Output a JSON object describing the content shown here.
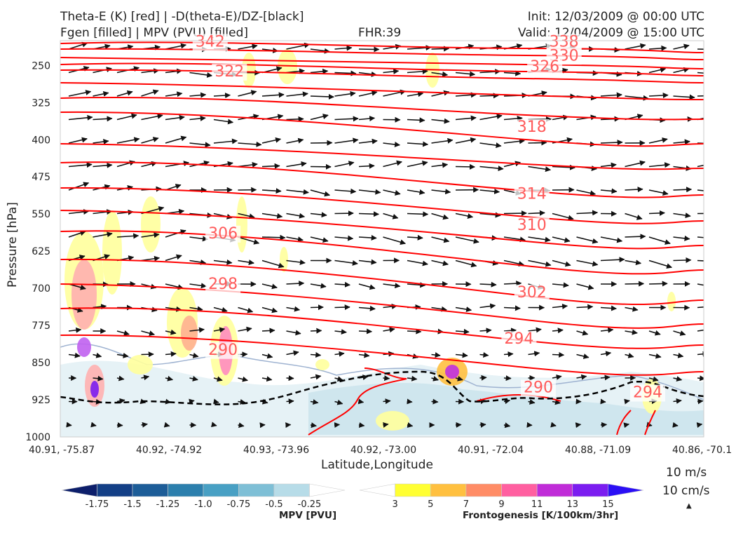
{
  "header": {
    "title_left_1": "Theta-E (K) [red] | -D(theta-E)/DZ-[black]",
    "title_left_2": "Fgen [filled] | MPV (PVU) [filled]",
    "title_center": "FHR:39",
    "title_right_1": "Init: 12/03/2009 @ 00:00 UTC",
    "title_right_2": "Valid: 12/04/2009 @ 15:00 UTC"
  },
  "chart_data": {
    "type": "cross-section",
    "xlabel": "Latitude,Longitude",
    "ylabel": "Pressure [hPa]",
    "x_ticks": [
      "40.91, -75.87",
      "40.92, -74.92",
      "40.93, -73.96",
      "40.92, -73.00",
      "40.91, -72.04",
      "40.88, -71.09",
      "40.86, -70.1"
    ],
    "y_ticks": [
      "250",
      "325",
      "400",
      "475",
      "550",
      "625",
      "700",
      "775",
      "850",
      "925",
      "1000"
    ],
    "y_values": [
      250,
      325,
      400,
      475,
      550,
      625,
      700,
      775,
      850,
      925,
      1000
    ],
    "ylim": [
      1000,
      200
    ],
    "theta_e_contours": [
      {
        "label": "342",
        "x": 0.21,
        "p": 212
      },
      {
        "label": "338",
        "x": 0.76,
        "p": 212
      },
      {
        "label": "330",
        "x": 0.76,
        "p": 240
      },
      {
        "label": "326",
        "x": 0.73,
        "p": 262
      },
      {
        "label": "322",
        "x": 0.24,
        "p": 272
      },
      {
        "label": "318",
        "x": 0.71,
        "p": 384
      },
      {
        "label": "314",
        "x": 0.71,
        "p": 519
      },
      {
        "label": "310",
        "x": 0.71,
        "p": 582
      },
      {
        "label": "306",
        "x": 0.23,
        "p": 599
      },
      {
        "label": "302",
        "x": 0.71,
        "p": 718
      },
      {
        "label": "298",
        "x": 0.23,
        "p": 701
      },
      {
        "label": "294",
        "x": 0.69,
        "p": 812
      },
      {
        "label": "290",
        "x": 0.23,
        "p": 834
      },
      {
        "label": "290",
        "x": 0.72,
        "p": 910
      },
      {
        "label": "294",
        "x": 0.89,
        "p": 920
      }
    ],
    "colorbars": [
      {
        "name": "MPV [PVU]",
        "ticks": [
          "-1.75",
          "-1.5",
          "-1.25",
          "-1.0",
          "-0.75",
          "-0.5",
          "-0.25"
        ],
        "colors": [
          "#0d1f6b",
          "#133f86",
          "#1d5d98",
          "#2c7fad",
          "#48a0c4",
          "#7ebfd6",
          "#b7dce8",
          "#ffffff"
        ]
      },
      {
        "name": "Frontogenesis [K/100km/3hr]",
        "ticks": [
          "3",
          "5",
          "7",
          "9",
          "11",
          "13",
          "15"
        ],
        "colors": [
          "#ffffff",
          "#ffff33",
          "#ffc040",
          "#ff8c66",
          "#ff5fa0",
          "#c02cd8",
          "#7b1df0",
          "#2b0ff5"
        ]
      }
    ],
    "vector_reference": [
      "10 m/s",
      "10 cm/s"
    ],
    "series_colors": {
      "theta_e": "#ff0000",
      "dthetae_dz": "#000000",
      "mpv_contour": "#9fb3d1"
    }
  }
}
